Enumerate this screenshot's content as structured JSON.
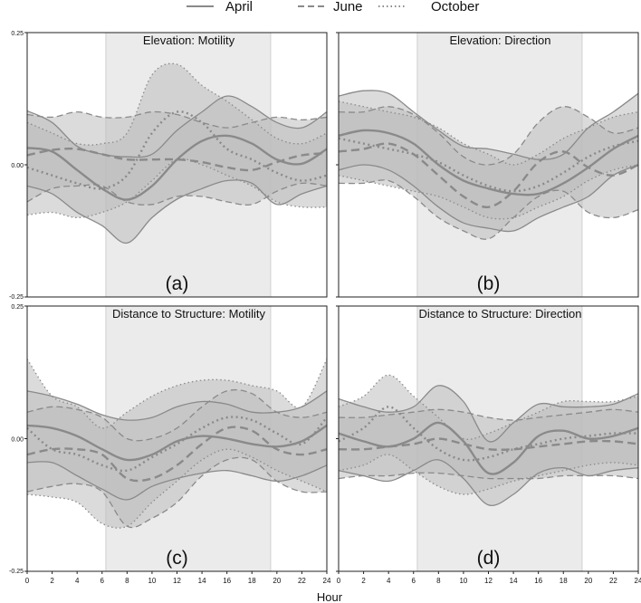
{
  "chart_data": [
    {
      "type": "line",
      "id": "a",
      "title": "Elevation: Motility",
      "panel_label": "(a)",
      "x": [
        0,
        2,
        4,
        6,
        8,
        10,
        12,
        14,
        16,
        18,
        20,
        22,
        24
      ],
      "xlim": [
        0,
        24
      ],
      "ylim": [
        -0.25,
        0.25
      ],
      "daytime_band": [
        6.3,
        19.5
      ],
      "series": [
        {
          "name": "April",
          "mean": [
            0.032,
            0.025,
            -0.01,
            -0.045,
            -0.066,
            -0.04,
            0.01,
            0.045,
            0.055,
            0.04,
            0.01,
            0.002,
            0.03
          ],
          "lower": [
            -0.04,
            -0.055,
            -0.09,
            -0.115,
            -0.148,
            -0.1,
            -0.065,
            -0.045,
            -0.03,
            -0.035,
            -0.075,
            -0.055,
            -0.04
          ],
          "upper": [
            0.102,
            0.08,
            0.035,
            0.02,
            0.015,
            0.02,
            0.065,
            0.1,
            0.13,
            0.11,
            0.08,
            0.07,
            0.1
          ]
        },
        {
          "name": "June",
          "mean": [
            0.018,
            0.028,
            0.03,
            0.02,
            0.01,
            0.01,
            0.01,
            0.005,
            -0.005,
            -0.01,
            0.005,
            0.018,
            0.022
          ],
          "lower": [
            -0.07,
            -0.045,
            -0.04,
            -0.04,
            -0.07,
            -0.075,
            -0.06,
            -0.06,
            -0.07,
            -0.075,
            -0.05,
            -0.035,
            -0.04
          ],
          "upper": [
            0.095,
            0.09,
            0.1,
            0.09,
            0.09,
            0.1,
            0.095,
            0.08,
            0.07,
            0.08,
            0.09,
            0.085,
            0.09
          ]
        },
        {
          "name": "October",
          "mean": [
            -0.005,
            -0.02,
            -0.035,
            -0.045,
            -0.02,
            0.06,
            0.1,
            0.08,
            0.03,
            0.01,
            -0.015,
            -0.03,
            -0.02
          ],
          "lower": [
            -0.095,
            -0.09,
            -0.1,
            -0.09,
            -0.07,
            -0.03,
            0.01,
            0.0,
            -0.02,
            -0.04,
            -0.07,
            -0.08,
            -0.08
          ],
          "upper": [
            0.08,
            0.06,
            0.04,
            0.04,
            0.06,
            0.17,
            0.19,
            0.15,
            0.12,
            0.085,
            0.05,
            0.04,
            0.06
          ]
        }
      ]
    },
    {
      "type": "line",
      "id": "b",
      "title": "Elevation: Direction",
      "panel_label": "(b)",
      "x": [
        0,
        2,
        4,
        6,
        8,
        10,
        12,
        14,
        16,
        18,
        20,
        22,
        24
      ],
      "xlim": [
        0,
        24
      ],
      "ylim": [
        -0.25,
        0.25
      ],
      "daytime_band": [
        6.3,
        19.5
      ],
      "series": [
        {
          "name": "April",
          "mean": [
            0.055,
            0.065,
            0.06,
            0.04,
            0.0,
            -0.03,
            -0.045,
            -0.055,
            -0.055,
            -0.035,
            -0.005,
            0.03,
            0.055
          ],
          "lower": [
            -0.01,
            0.0,
            -0.01,
            -0.04,
            -0.08,
            -0.11,
            -0.12,
            -0.125,
            -0.1,
            -0.08,
            -0.06,
            -0.02,
            0.0
          ],
          "upper": [
            0.13,
            0.14,
            0.135,
            0.1,
            0.065,
            0.035,
            0.03,
            0.02,
            0.01,
            0.02,
            0.07,
            0.1,
            0.135
          ]
        },
        {
          "name": "June",
          "mean": [
            0.025,
            0.03,
            0.04,
            0.02,
            -0.02,
            -0.06,
            -0.08,
            -0.05,
            0.005,
            0.025,
            -0.005,
            -0.02,
            0.0
          ],
          "lower": [
            -0.035,
            -0.035,
            -0.03,
            -0.06,
            -0.1,
            -0.125,
            -0.14,
            -0.1,
            -0.06,
            -0.05,
            -0.09,
            -0.1,
            -0.085
          ],
          "upper": [
            0.1,
            0.1,
            0.11,
            0.095,
            0.06,
            0.015,
            0.0,
            0.02,
            0.08,
            0.11,
            0.09,
            0.06,
            0.07
          ]
        },
        {
          "name": "October",
          "mean": [
            0.05,
            0.04,
            0.03,
            0.02,
            0.005,
            -0.02,
            -0.04,
            -0.05,
            -0.04,
            -0.015,
            0.015,
            0.035,
            0.045
          ],
          "lower": [
            -0.02,
            -0.03,
            -0.04,
            -0.05,
            -0.06,
            -0.08,
            -0.1,
            -0.1,
            -0.08,
            -0.06,
            -0.03,
            -0.01,
            0.0
          ],
          "upper": [
            0.12,
            0.11,
            0.1,
            0.09,
            0.07,
            0.04,
            0.02,
            0.0,
            0.02,
            0.05,
            0.07,
            0.09,
            0.1
          ]
        }
      ]
    },
    {
      "type": "line",
      "id": "c",
      "title": "Distance to Structure: Motility",
      "panel_label": "(c)",
      "x": [
        0,
        2,
        4,
        6,
        8,
        10,
        12,
        14,
        16,
        18,
        20,
        22,
        24
      ],
      "xlim": [
        0,
        24
      ],
      "ylim": [
        -0.25,
        0.25
      ],
      "daytime_band": [
        6.3,
        19.5
      ],
      "series": [
        {
          "name": "April",
          "mean": [
            0.025,
            0.02,
            0.005,
            -0.02,
            -0.04,
            -0.03,
            -0.005,
            0.005,
            0.0,
            -0.01,
            -0.015,
            -0.005,
            0.025
          ],
          "lower": [
            -0.045,
            -0.045,
            -0.07,
            -0.095,
            -0.115,
            -0.09,
            -0.075,
            -0.065,
            -0.06,
            -0.07,
            -0.08,
            -0.07,
            -0.05
          ],
          "upper": [
            0.09,
            0.08,
            0.065,
            0.045,
            0.035,
            0.04,
            0.06,
            0.07,
            0.065,
            0.05,
            0.05,
            0.06,
            0.09
          ]
        },
        {
          "name": "June",
          "mean": [
            -0.03,
            -0.02,
            -0.02,
            -0.03,
            -0.075,
            -0.075,
            -0.05,
            -0.01,
            0.02,
            0.015,
            -0.02,
            -0.03,
            -0.02
          ],
          "lower": [
            -0.1,
            -0.09,
            -0.085,
            -0.1,
            -0.165,
            -0.15,
            -0.12,
            -0.07,
            -0.04,
            -0.04,
            -0.08,
            -0.1,
            -0.1
          ],
          "upper": [
            0.05,
            0.06,
            0.055,
            0.04,
            0.0,
            0.0,
            0.02,
            0.06,
            0.09,
            0.085,
            0.05,
            0.04,
            0.05
          ]
        },
        {
          "name": "October",
          "mean": [
            0.02,
            -0.02,
            -0.03,
            -0.05,
            -0.06,
            -0.035,
            -0.01,
            0.02,
            0.04,
            0.035,
            0.01,
            -0.01,
            0.04
          ],
          "lower": [
            -0.105,
            -0.11,
            -0.12,
            -0.16,
            -0.165,
            -0.12,
            -0.08,
            -0.04,
            -0.02,
            -0.035,
            -0.06,
            -0.08,
            -0.1
          ],
          "upper": [
            0.15,
            0.08,
            0.06,
            0.02,
            0.05,
            0.08,
            0.1,
            0.11,
            0.11,
            0.1,
            0.09,
            0.06,
            0.15
          ]
        }
      ]
    },
    {
      "type": "line",
      "id": "d",
      "title": "Distance to Structure: Direction",
      "panel_label": "(d)",
      "x": [
        0,
        2,
        4,
        6,
        8,
        10,
        12,
        14,
        16,
        18,
        20,
        22,
        24
      ],
      "xlim": [
        0,
        24
      ],
      "ylim": [
        -0.25,
        0.25
      ],
      "daytime_band": [
        6.3,
        19.5
      ],
      "series": [
        {
          "name": "April",
          "mean": [
            0.01,
            -0.005,
            -0.015,
            0.0,
            0.03,
            -0.005,
            -0.065,
            -0.045,
            0.005,
            0.015,
            0.0,
            0.005,
            0.02
          ],
          "lower": [
            -0.06,
            -0.07,
            -0.08,
            -0.06,
            -0.04,
            -0.075,
            -0.125,
            -0.105,
            -0.065,
            -0.055,
            -0.07,
            -0.06,
            -0.055
          ],
          "upper": [
            0.075,
            0.06,
            0.05,
            0.06,
            0.1,
            0.07,
            -0.005,
            0.03,
            0.065,
            0.06,
            0.06,
            0.065,
            0.085
          ]
        },
        {
          "name": "June",
          "mean": [
            -0.02,
            -0.02,
            -0.015,
            -0.01,
            0.0,
            -0.01,
            -0.02,
            -0.02,
            -0.015,
            -0.01,
            -0.005,
            -0.005,
            -0.01
          ],
          "lower": [
            -0.075,
            -0.07,
            -0.07,
            -0.065,
            -0.065,
            -0.07,
            -0.075,
            -0.075,
            -0.075,
            -0.07,
            -0.07,
            -0.07,
            -0.075
          ],
          "upper": [
            0.04,
            0.04,
            0.045,
            0.05,
            0.055,
            0.05,
            0.04,
            0.035,
            0.04,
            0.045,
            0.05,
            0.055,
            0.05
          ]
        },
        {
          "name": "October",
          "mean": [
            -0.005,
            0.02,
            0.06,
            0.02,
            -0.02,
            -0.04,
            -0.035,
            -0.02,
            -0.01,
            0.0,
            0.005,
            0.01,
            0.01
          ],
          "lower": [
            -0.06,
            -0.05,
            -0.03,
            -0.06,
            -0.09,
            -0.105,
            -0.095,
            -0.08,
            -0.07,
            -0.06,
            -0.05,
            -0.045,
            -0.05
          ],
          "upper": [
            0.06,
            0.08,
            0.12,
            0.08,
            0.04,
            0.0,
            0.01,
            0.03,
            0.05,
            0.07,
            0.07,
            0.07,
            0.08
          ]
        }
      ]
    }
  ],
  "legend": {
    "entries": [
      "April",
      "June",
      "October"
    ],
    "placement": "top-center"
  },
  "axes": {
    "xlabel": "Hour",
    "x_ticks": [
      "0",
      "2",
      "4",
      "6",
      "8",
      "10",
      "12",
      "14",
      "16",
      "18",
      "20",
      "22",
      "24"
    ],
    "y_ticks": [
      "0.25",
      "0.00",
      "-0.25"
    ]
  },
  "colors": {
    "band": "#bdbdbd",
    "line": "#8a8a8a",
    "daytime": "#ebebeb",
    "frame": "#222222",
    "text": "#111111"
  }
}
